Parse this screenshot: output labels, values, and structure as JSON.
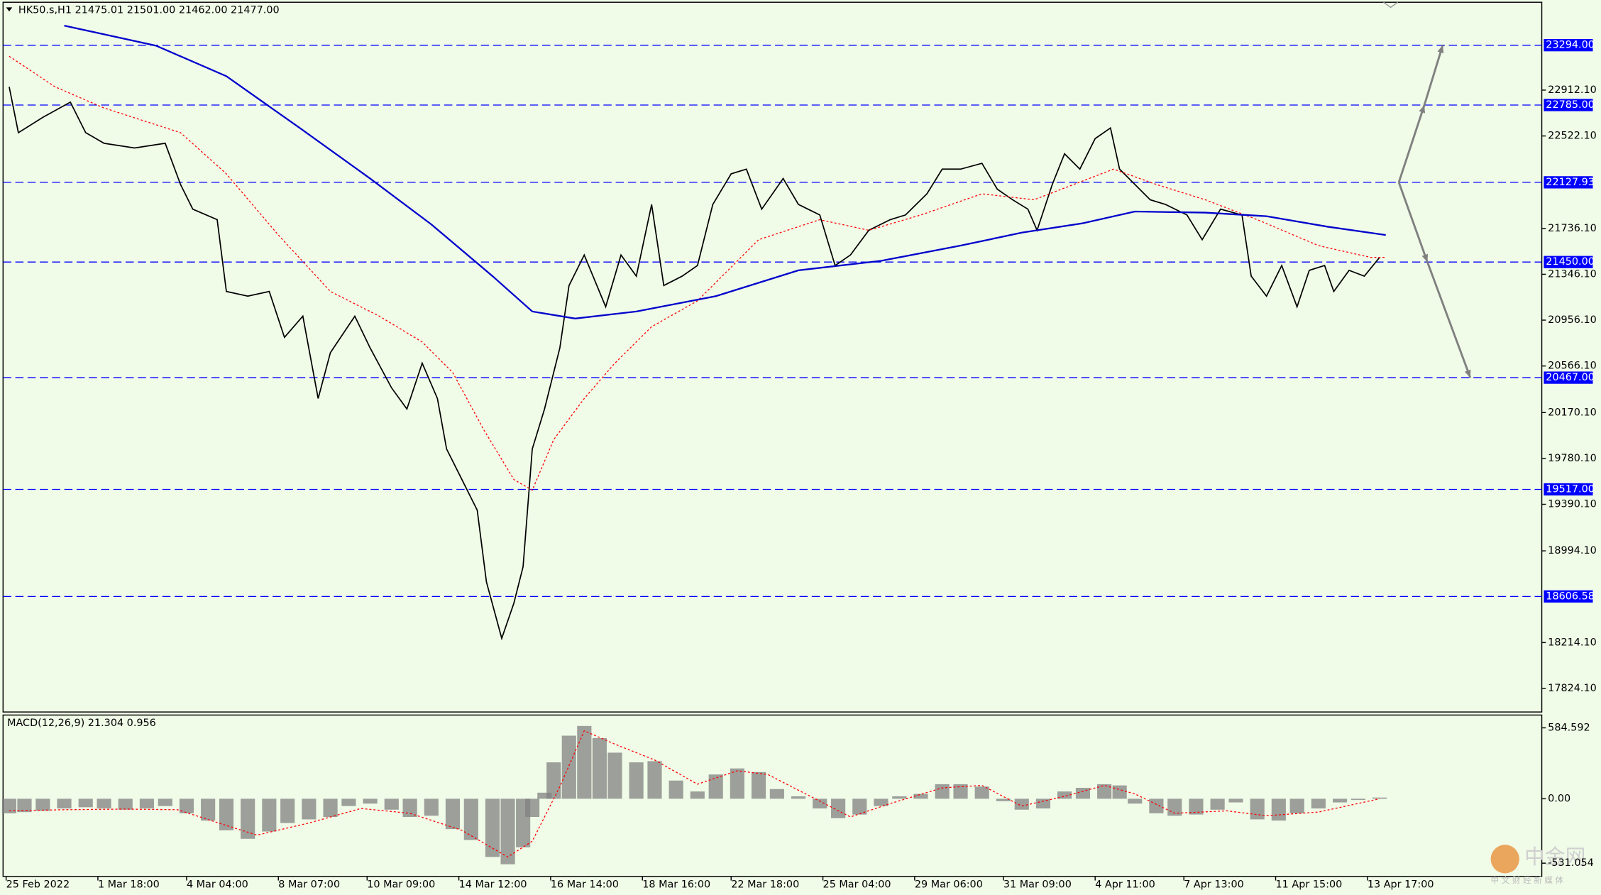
{
  "chart_data": [
    {
      "type": "line",
      "title": "HK50.s,H1  21475.01 21501.00 21462.00 21477.00",
      "xlim": [
        0,
        503
      ],
      "xticks": [
        {
          "value": 1,
          "label": "25 Feb 2022"
        },
        {
          "value": 31,
          "label": "1 Mar 18:00"
        },
        {
          "value": 60,
          "label": "4 Mar 04:00"
        },
        {
          "value": 90,
          "label": "8 Mar 07:00"
        },
        {
          "value": 119,
          "label": "10 Mar 09:00"
        },
        {
          "value": 149,
          "label": "14 Mar 12:00"
        },
        {
          "value": 179,
          "label": "16 Mar 14:00"
        },
        {
          "value": 209,
          "label": "18 Mar 16:00"
        },
        {
          "value": 238,
          "label": "22 Mar 18:00"
        },
        {
          "value": 268,
          "label": "25 Mar 04:00"
        },
        {
          "value": 298,
          "label": "29 Mar 06:00"
        },
        {
          "value": 327,
          "label": "31 Mar 09:00"
        },
        {
          "value": 357,
          "label": "4 Apr 11:00"
        },
        {
          "value": 386,
          "label": "7 Apr 13:00"
        },
        {
          "value": 416,
          "label": "11 Apr 15:00"
        },
        {
          "value": 446,
          "label": "13 Apr 17:00"
        }
      ],
      "ylim": [
        17624,
        23659
      ],
      "yticks": [
        {
          "value": 22912.1,
          "label": "22912.10"
        },
        {
          "value": 22522.1,
          "label": "22522.10"
        },
        {
          "value": 21736.1,
          "label": "21736.10"
        },
        {
          "value": 21346.1,
          "label": "21346.10"
        },
        {
          "value": 20956.1,
          "label": "20956.10"
        },
        {
          "value": 20566.1,
          "label": "20566.10"
        },
        {
          "value": 20170.1,
          "label": "20170.10"
        },
        {
          "value": 19780.1,
          "label": "19780.10"
        },
        {
          "value": 19390.1,
          "label": "19390.10"
        },
        {
          "value": 18994.1,
          "label": "18994.10"
        },
        {
          "value": 18214.1,
          "label": "18214.10"
        },
        {
          "value": 17824.1,
          "label": "17824.10"
        }
      ],
      "levels": [
        23294,
        22785,
        22127.93,
        21450,
        20467,
        19517,
        18606.58
      ],
      "level_labels": [
        "23294.00",
        "22785.00",
        "22127.93",
        "21450.00",
        "20467.00",
        "19517.00",
        "18606.58"
      ],
      "level_color": "#0000ff",
      "series": [
        {
          "color": "#000000",
          "style": "solid",
          "x": [
            2,
            5,
            13,
            22,
            27,
            33,
            43,
            53,
            58,
            62,
            70,
            73,
            80,
            87,
            92,
            98,
            103,
            107,
            115,
            120,
            127,
            132,
            137,
            142,
            145,
            150,
            155,
            158,
            163,
            167,
            170,
            173,
            177,
            182,
            185,
            190,
            197,
            202,
            207,
            212,
            216,
            222,
            227,
            232,
            238,
            243,
            248,
            255,
            260,
            267,
            272,
            277,
            283,
            290,
            295,
            302,
            307,
            313,
            320,
            325,
            330,
            335,
            338,
            343,
            347,
            352,
            357,
            362,
            365,
            370,
            375,
            380,
            387,
            392,
            398,
            405,
            408,
            413,
            418,
            423,
            427,
            432,
            435,
            440,
            445,
            450
          ],
          "values": [
            22940,
            22550,
            22680,
            22810,
            22550,
            22460,
            22420,
            22460,
            22110,
            21900,
            21810,
            21200,
            21160,
            21200,
            20810,
            20990,
            20290,
            20680,
            20990,
            20720,
            20380,
            20200,
            20590,
            20290,
            19860,
            19600,
            19340,
            18730,
            18250,
            18550,
            18860,
            19860,
            20200,
            20720,
            21250,
            21510,
            21070,
            21510,
            21330,
            21940,
            21250,
            21330,
            21420,
            21940,
            22200,
            22240,
            21900,
            22160,
            21940,
            21850,
            21420,
            21510,
            21720,
            21810,
            21850,
            22030,
            22240,
            22240,
            22290,
            22070,
            21980,
            21900,
            21720,
            22110,
            22370,
            22240,
            22500,
            22590,
            22240,
            22110,
            21980,
            21940,
            21850,
            21640,
            21900,
            21850,
            21330,
            21160,
            21420,
            21070,
            21380,
            21420,
            21200,
            21380,
            21330,
            21490
          ]
        },
        {
          "color": "#ff0000",
          "style": "dotted",
          "x": [
            2,
            17,
            33,
            58,
            73,
            90,
            107,
            123,
            137,
            147,
            157,
            167,
            173,
            180,
            190,
            200,
            212,
            227,
            247,
            267,
            283,
            300,
            320,
            337,
            350,
            363,
            377,
            393,
            410,
            430,
            447,
            452
          ],
          "values": [
            23200,
            22940,
            22760,
            22550,
            22200,
            21680,
            21200,
            20990,
            20770,
            20510,
            20030,
            19600,
            19510,
            19940,
            20290,
            20590,
            20900,
            21120,
            21640,
            21810,
            21720,
            21850,
            22030,
            21980,
            22110,
            22240,
            22110,
            21980,
            21810,
            21590,
            21490,
            21490
          ]
        },
        {
          "color": "#0000cc",
          "style": "solid",
          "x": [
            20,
            50,
            73,
            97,
            120,
            140,
            160,
            173,
            187,
            207,
            233,
            260,
            287,
            313,
            333,
            353,
            370,
            393,
            413,
            433,
            452
          ],
          "values": [
            23460,
            23290,
            23030,
            22590,
            22160,
            21770,
            21330,
            21030,
            20970,
            21030,
            21160,
            21380,
            21460,
            21590,
            21700,
            21780,
            21880,
            21870,
            21840,
            21750,
            21680
          ]
        }
      ]
    },
    {
      "type": "bar",
      "title": "MACD(12,26,9) 21.304 0.956",
      "color": "#808080",
      "ylim": [
        -640,
        690
      ],
      "yticks": [
        584.592,
        {
          "value": 0,
          "label": "0.00"
        },
        -531.054
      ],
      "x": [
        2,
        7,
        13,
        20,
        27,
        33,
        40,
        47,
        53,
        60,
        67,
        73,
        80,
        87,
        93,
        100,
        107,
        113,
        120,
        127,
        133,
        140,
        147,
        153,
        160,
        165,
        170,
        173,
        177,
        180,
        185,
        190,
        195,
        200,
        207,
        213,
        220,
        227,
        233,
        240,
        247,
        253,
        260,
        267,
        273,
        280,
        287,
        293,
        300,
        307,
        313,
        320,
        327,
        333,
        340,
        347,
        353,
        360,
        365,
        370,
        377,
        383,
        390,
        397,
        403,
        410,
        417,
        423,
        430,
        437,
        443,
        450
      ],
      "values": [
        -120,
        -110,
        -100,
        -80,
        -70,
        -80,
        -90,
        -80,
        -60,
        -120,
        -180,
        -260,
        -330,
        -270,
        -200,
        -170,
        -150,
        -60,
        -40,
        -90,
        -150,
        -140,
        -250,
        -340,
        -480,
        -540,
        -400,
        -150,
        50,
        300,
        520,
        600,
        500,
        380,
        300,
        310,
        150,
        60,
        200,
        250,
        220,
        80,
        20,
        -80,
        -160,
        -130,
        -60,
        20,
        40,
        120,
        120,
        100,
        -20,
        -90,
        -80,
        60,
        90,
        120,
        110,
        -40,
        -120,
        -140,
        -130,
        -90,
        -30,
        -170,
        -180,
        -120,
        -80,
        -30,
        -10,
        10
      ],
      "series": [
        {
          "color": "#ff0000",
          "style": "dotted",
          "x": [
            2,
            20,
            40,
            57,
            73,
            83,
            100,
            117,
            133,
            150,
            165,
            173,
            182,
            190,
            200,
            213,
            227,
            240,
            250,
            267,
            277,
            290,
            307,
            320,
            333,
            347,
            360,
            370,
            383,
            400,
            413,
            430,
            450
          ],
          "values": [
            -100,
            -90,
            -85,
            -90,
            -220,
            -300,
            -200,
            -80,
            -120,
            -260,
            -480,
            -350,
            100,
            560,
            450,
            320,
            120,
            230,
            200,
            -20,
            -150,
            -40,
            90,
            110,
            -60,
            20,
            110,
            40,
            -120,
            -100,
            -140,
            -110,
            0
          ]
        }
      ]
    }
  ],
  "watermark": {
    "title": "中金网",
    "subtitle": "中 文 财 经 新 媒 体"
  }
}
